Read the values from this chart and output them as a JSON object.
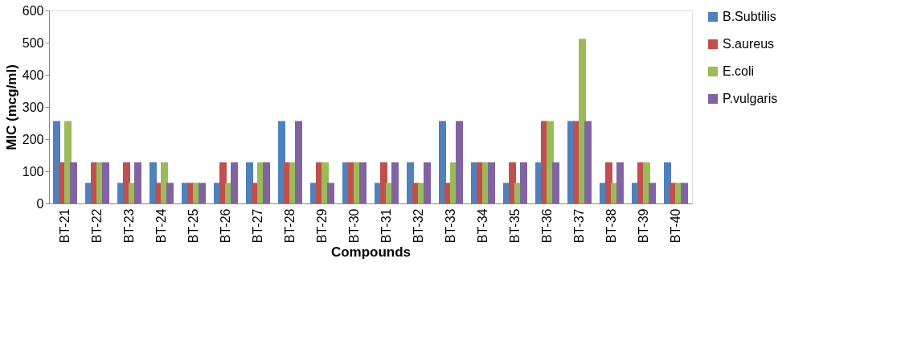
{
  "chart_data": {
    "type": "bar",
    "xlabel": "Compounds",
    "ylabel": "MIC (mcg/ml)",
    "categories": [
      "BT-21",
      "BT-22",
      "BT-23",
      "BT-24",
      "BT-25",
      "BT-26",
      "BT-27",
      "BT-28",
      "BT-29",
      "BT-30",
      "BT-31",
      "BT-32",
      "BT-33",
      "BT-34",
      "BT-35",
      "BT-36",
      "BT-37",
      "BT-38",
      "BT-39",
      "BT-40"
    ],
    "series": [
      {
        "name": "B.Subtilis",
        "color": "#4f81bd",
        "values": [
          256,
          64,
          64,
          128,
          64,
          64,
          128,
          256,
          64,
          128,
          64,
          128,
          256,
          128,
          64,
          128,
          256,
          64,
          64,
          128
        ]
      },
      {
        "name": "S.aureus",
        "color": "#c0504d",
        "values": [
          128,
          128,
          128,
          64,
          64,
          128,
          64,
          128,
          128,
          128,
          128,
          64,
          64,
          128,
          128,
          256,
          256,
          128,
          128,
          64
        ]
      },
      {
        "name": "E.coli",
        "color": "#9bbb59",
        "values": [
          256,
          128,
          64,
          128,
          64,
          64,
          128,
          128,
          128,
          128,
          64,
          64,
          128,
          128,
          64,
          256,
          512,
          64,
          128,
          64
        ]
      },
      {
        "name": "P.vulgaris",
        "color": "#8064a2",
        "values": [
          128,
          128,
          128,
          64,
          64,
          128,
          128,
          256,
          64,
          128,
          128,
          128,
          256,
          128,
          128,
          128,
          256,
          128,
          64,
          64
        ]
      }
    ],
    "ylim": [
      0,
      600
    ],
    "yticks": [
      0,
      100,
      200,
      300,
      400,
      500,
      600
    ],
    "grid": false,
    "legend": "right"
  }
}
